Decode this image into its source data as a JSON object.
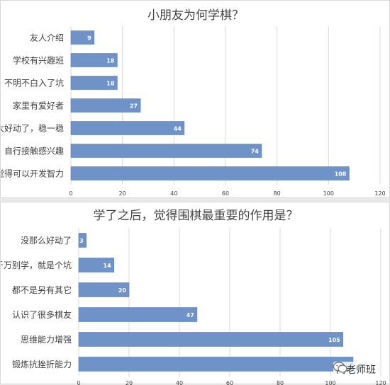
{
  "chart_data": [
    {
      "type": "bar",
      "orientation": "horizontal",
      "title": "小朋友为何学棋？",
      "categories": [
        "友人介绍",
        "学校有兴趣班",
        "不明不白入了坑",
        "家里有爱好者",
        "太好动了，稳一稳",
        "自行接触感兴趣",
        "觉得可以开发智力"
      ],
      "values": [
        9,
        18,
        18,
        27,
        44,
        74,
        108
      ],
      "x_ticks": [
        "0",
        "20",
        "40",
        "60",
        "80",
        "100",
        "120"
      ],
      "xlim": [
        0,
        120
      ],
      "grid": true,
      "bar_color": "#6f93c8"
    },
    {
      "type": "bar",
      "orientation": "horizontal",
      "title": "学了之后，觉得围棋最重要的作用是？",
      "categories": [
        "没那么好动了",
        "千万别学，就是个坑",
        "都不是另有其它",
        "认识了很多棋友",
        "思维能力增强",
        "锻炼抗挫折能力"
      ],
      "values": [
        3,
        14,
        20,
        47,
        105,
        109
      ],
      "x_ticks": [
        "0",
        "20",
        "40",
        "60",
        "80",
        "100",
        "120"
      ],
      "xlim": [
        0,
        120
      ],
      "grid": true,
      "bar_color": "#6f93c8"
    }
  ],
  "watermark": {
    "text": "陶老师班",
    "icon": "wechat-icon"
  }
}
